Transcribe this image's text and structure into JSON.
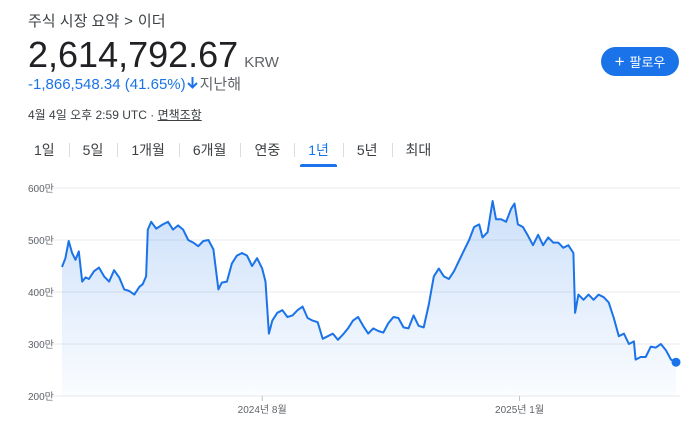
{
  "breadcrumb": {
    "section": "주식 시장 요약",
    "separator": ">",
    "asset": "이더"
  },
  "quote": {
    "price": "2,614,792.67",
    "currency": "KRW",
    "change": "-1,866,548.34",
    "change_percent": "(41.65%)",
    "direction_icon": "arrow-down-icon",
    "period": "지난해"
  },
  "follow_button": {
    "icon": "plus-icon",
    "label": "팔로우"
  },
  "timestamp": {
    "text": "4월 4일 오후 2:59 UTC",
    "separator": "·",
    "disclaimer": "면책조항"
  },
  "tabs": [
    {
      "label": "1일",
      "active": false
    },
    {
      "label": "5일",
      "active": false
    },
    {
      "label": "1개월",
      "active": false
    },
    {
      "label": "6개월",
      "active": false
    },
    {
      "label": "연중",
      "active": false
    },
    {
      "label": "1년",
      "active": true
    },
    {
      "label": "5년",
      "active": false
    },
    {
      "label": "최대",
      "active": false
    }
  ],
  "colors": {
    "accent": "#1a73e8",
    "line": "#1a73e8",
    "grid": "#e8eaed",
    "text_secondary": "#5f6368"
  },
  "chart_data": {
    "type": "area",
    "ylim": [
      200,
      600
    ],
    "yticks": [
      200,
      300,
      400,
      500,
      600
    ],
    "ytick_labels": [
      "200만",
      "300만",
      "400만",
      "500만",
      "600만"
    ],
    "xlim": [
      "2024-04-04",
      "2025-04-04"
    ],
    "xticks": [
      {
        "date": "2024-08-01",
        "label": "2024년 8월"
      },
      {
        "date": "2025-01-01",
        "label": "2025년 1월"
      }
    ],
    "grid": true,
    "unit": "만 KRW",
    "series": [
      {
        "points": [
          [
            "2024-04-04",
            448
          ],
          [
            "2024-04-06",
            465
          ],
          [
            "2024-04-08",
            498
          ],
          [
            "2024-04-10",
            475
          ],
          [
            "2024-04-12",
            462
          ],
          [
            "2024-04-14",
            478
          ],
          [
            "2024-04-16",
            420
          ],
          [
            "2024-04-18",
            428
          ],
          [
            "2024-04-20",
            425
          ],
          [
            "2024-04-23",
            440
          ],
          [
            "2024-04-26",
            447
          ],
          [
            "2024-04-29",
            430
          ],
          [
            "2024-05-02",
            420
          ],
          [
            "2024-05-05",
            442
          ],
          [
            "2024-05-08",
            428
          ],
          [
            "2024-05-11",
            405
          ],
          [
            "2024-05-14",
            402
          ],
          [
            "2024-05-17",
            395
          ],
          [
            "2024-05-20",
            410
          ],
          [
            "2024-05-22",
            415
          ],
          [
            "2024-05-24",
            430
          ],
          [
            "2024-05-25",
            520
          ],
          [
            "2024-05-27",
            535
          ],
          [
            "2024-05-30",
            522
          ],
          [
            "2024-06-03",
            530
          ],
          [
            "2024-06-06",
            535
          ],
          [
            "2024-06-09",
            520
          ],
          [
            "2024-06-12",
            528
          ],
          [
            "2024-06-15",
            520
          ],
          [
            "2024-06-18",
            500
          ],
          [
            "2024-06-21",
            495
          ],
          [
            "2024-06-24",
            488
          ],
          [
            "2024-06-27",
            498
          ],
          [
            "2024-06-30",
            500
          ],
          [
            "2024-07-03",
            482
          ],
          [
            "2024-07-06",
            405
          ],
          [
            "2024-07-08",
            418
          ],
          [
            "2024-07-11",
            420
          ],
          [
            "2024-07-14",
            455
          ],
          [
            "2024-07-17",
            470
          ],
          [
            "2024-07-20",
            475
          ],
          [
            "2024-07-23",
            470
          ],
          [
            "2024-07-26",
            450
          ],
          [
            "2024-07-29",
            465
          ],
          [
            "2024-08-01",
            445
          ],
          [
            "2024-08-03",
            420
          ],
          [
            "2024-08-05",
            320
          ],
          [
            "2024-08-07",
            345
          ],
          [
            "2024-08-10",
            360
          ],
          [
            "2024-08-13",
            365
          ],
          [
            "2024-08-16",
            352
          ],
          [
            "2024-08-19",
            355
          ],
          [
            "2024-08-22",
            365
          ],
          [
            "2024-08-25",
            372
          ],
          [
            "2024-08-28",
            350
          ],
          [
            "2024-08-31",
            345
          ],
          [
            "2024-09-03",
            342
          ],
          [
            "2024-09-06",
            310
          ],
          [
            "2024-09-09",
            315
          ],
          [
            "2024-09-12",
            320
          ],
          [
            "2024-09-15",
            308
          ],
          [
            "2024-09-18",
            318
          ],
          [
            "2024-09-21",
            330
          ],
          [
            "2024-09-24",
            345
          ],
          [
            "2024-09-27",
            352
          ],
          [
            "2024-09-30",
            335
          ],
          [
            "2024-10-03",
            320
          ],
          [
            "2024-10-06",
            330
          ],
          [
            "2024-10-09",
            325
          ],
          [
            "2024-10-12",
            322
          ],
          [
            "2024-10-15",
            340
          ],
          [
            "2024-10-18",
            352
          ],
          [
            "2024-10-21",
            350
          ],
          [
            "2024-10-24",
            332
          ],
          [
            "2024-10-27",
            330
          ],
          [
            "2024-10-30",
            355
          ],
          [
            "2024-11-02",
            335
          ],
          [
            "2024-11-05",
            332
          ],
          [
            "2024-11-08",
            375
          ],
          [
            "2024-11-11",
            430
          ],
          [
            "2024-11-14",
            445
          ],
          [
            "2024-11-17",
            430
          ],
          [
            "2024-11-20",
            425
          ],
          [
            "2024-11-23",
            440
          ],
          [
            "2024-11-26",
            460
          ],
          [
            "2024-11-29",
            480
          ],
          [
            "2024-12-02",
            500
          ],
          [
            "2024-12-05",
            525
          ],
          [
            "2024-12-08",
            530
          ],
          [
            "2024-12-10",
            505
          ],
          [
            "2024-12-13",
            515
          ],
          [
            "2024-12-16",
            575
          ],
          [
            "2024-12-18",
            540
          ],
          [
            "2024-12-21",
            540
          ],
          [
            "2024-12-24",
            535
          ],
          [
            "2024-12-27",
            560
          ],
          [
            "2024-12-29",
            570
          ],
          [
            "2024-12-31",
            530
          ],
          [
            "2025-01-03",
            525
          ],
          [
            "2025-01-06",
            508
          ],
          [
            "2025-01-09",
            490
          ],
          [
            "2025-01-12",
            510
          ],
          [
            "2025-01-15",
            490
          ],
          [
            "2025-01-18",
            505
          ],
          [
            "2025-01-21",
            495
          ],
          [
            "2025-01-24",
            495
          ],
          [
            "2025-01-27",
            485
          ],
          [
            "2025-01-30",
            490
          ],
          [
            "2025-02-02",
            475
          ],
          [
            "2025-02-03",
            360
          ],
          [
            "2025-02-05",
            395
          ],
          [
            "2025-02-08",
            385
          ],
          [
            "2025-02-11",
            395
          ],
          [
            "2025-02-14",
            385
          ],
          [
            "2025-02-17",
            395
          ],
          [
            "2025-02-20",
            390
          ],
          [
            "2025-02-23",
            380
          ],
          [
            "2025-02-26",
            350
          ],
          [
            "2025-03-01",
            315
          ],
          [
            "2025-03-04",
            320
          ],
          [
            "2025-03-07",
            300
          ],
          [
            "2025-03-10",
            305
          ],
          [
            "2025-03-11",
            270
          ],
          [
            "2025-03-14",
            275
          ],
          [
            "2025-03-17",
            275
          ],
          [
            "2025-03-20",
            295
          ],
          [
            "2025-03-23",
            293
          ],
          [
            "2025-03-26",
            300
          ],
          [
            "2025-03-29",
            288
          ],
          [
            "2025-04-01",
            270
          ],
          [
            "2025-04-04",
            265
          ]
        ]
      }
    ]
  }
}
